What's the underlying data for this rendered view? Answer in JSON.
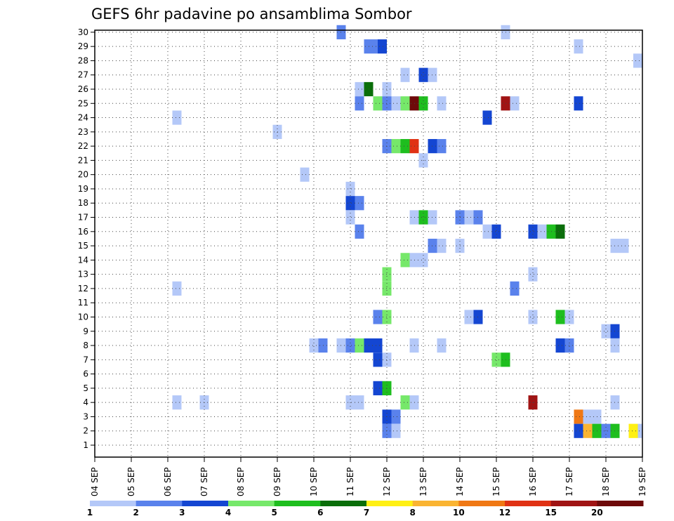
{
  "chart_data": {
    "type": "heatmap",
    "title": "GEFS 6hr padavine po ansamblima Sombor",
    "xlabel": "",
    "ylabel": "",
    "x_tick_labels": [
      "04 SEP",
      "05 SEP",
      "06 SEP",
      "07 SEP",
      "08 SEP",
      "09 SEP",
      "10 SEP",
      "11 SEP",
      "12 SEP",
      "13 SEP",
      "14 SEP",
      "15 SEP",
      "16 SEP",
      "17 SEP",
      "18 SEP",
      "19 SEP"
    ],
    "y_tick_labels": [
      "1",
      "2",
      "3",
      "4",
      "5",
      "6",
      "7",
      "8",
      "9",
      "10",
      "11",
      "12",
      "13",
      "14",
      "15",
      "16",
      "17",
      "18",
      "19",
      "20",
      "21",
      "22",
      "23",
      "24",
      "25",
      "26",
      "27",
      "28",
      "29",
      "30"
    ],
    "x_range_steps": [
      0,
      60
    ],
    "y_range_members": [
      1,
      30
    ],
    "grid": true,
    "colorbar": {
      "labels": [
        "1",
        "2",
        "3",
        "4",
        "5",
        "6",
        "7",
        "8",
        "10",
        "12",
        "15",
        "20"
      ],
      "colors": [
        "#b4c8f8",
        "#5a82ec",
        "#1446d2",
        "#76e86a",
        "#1ebe1e",
        "#0a6e0a",
        "#fff014",
        "#fab432",
        "#f07814",
        "#e03214",
        "#a01414",
        "#6e0a0a"
      ]
    },
    "cell_encoding": "cells: [member, step_start, step_end, color_class]; step 0 = 04 SEP 00h, 6h per step; class 0=1-2, 1=2-3, 2=3-4, 3=4-5, 4=5-6, 5=6-7, 6=7-8, 7=8-10, 8=10-12, 9=12-15, 10=15-20, 11=>20",
    "cells": [
      [
        30,
        26.5,
        27.5,
        1
      ],
      [
        30,
        44.5,
        45.5,
        0
      ],
      [
        29,
        29.5,
        31,
        1
      ],
      [
        29,
        31,
        32,
        2
      ],
      [
        29,
        52.5,
        53.5,
        0
      ],
      [
        28,
        59,
        60,
        0
      ],
      [
        27,
        33.5,
        34.5,
        0
      ],
      [
        27,
        35.5,
        36.5,
        2
      ],
      [
        27,
        36.5,
        37.5,
        0
      ],
      [
        26,
        28.5,
        29.5,
        0
      ],
      [
        26,
        29.5,
        30.5,
        5
      ],
      [
        26,
        31.5,
        32.5,
        0
      ],
      [
        25,
        28.5,
        29.5,
        1
      ],
      [
        25,
        30.5,
        31.5,
        3
      ],
      [
        25,
        31.5,
        32.5,
        1
      ],
      [
        25,
        32.5,
        33.5,
        0
      ],
      [
        25,
        33.5,
        34.5,
        3
      ],
      [
        25,
        34.5,
        35.5,
        11
      ],
      [
        25,
        35.5,
        36.5,
        4
      ],
      [
        25,
        37.5,
        38.5,
        0
      ],
      [
        25,
        44.5,
        45.5,
        10
      ],
      [
        25,
        45.5,
        46.5,
        0
      ],
      [
        25,
        52.5,
        53.5,
        2
      ],
      [
        24,
        8.5,
        9.5,
        0
      ],
      [
        24,
        42.5,
        43.5,
        2
      ],
      [
        23,
        19.5,
        20.5,
        0
      ],
      [
        22,
        31.5,
        32.5,
        1
      ],
      [
        22,
        32.5,
        33.5,
        3
      ],
      [
        22,
        33.5,
        34.5,
        4
      ],
      [
        22,
        34.5,
        35.5,
        9
      ],
      [
        22,
        36.5,
        37.5,
        2
      ],
      [
        22,
        37.5,
        38.5,
        1
      ],
      [
        21,
        35.5,
        36.5,
        0
      ],
      [
        20,
        22.5,
        23.5,
        0
      ],
      [
        19,
        27.5,
        28.5,
        0
      ],
      [
        18,
        27.5,
        28.5,
        2
      ],
      [
        18,
        28.5,
        29.5,
        1
      ],
      [
        17,
        27.5,
        28.5,
        0
      ],
      [
        17,
        34.5,
        35.5,
        0
      ],
      [
        17,
        35.5,
        36.5,
        4
      ],
      [
        17,
        36.5,
        37.5,
        0
      ],
      [
        17,
        39.5,
        40.5,
        1
      ],
      [
        17,
        40.5,
        41.5,
        0
      ],
      [
        17,
        41.5,
        42.5,
        1
      ],
      [
        16,
        28.5,
        29.5,
        1
      ],
      [
        16,
        42.5,
        43.5,
        0
      ],
      [
        16,
        43.5,
        44.5,
        2
      ],
      [
        16,
        47.5,
        48.5,
        2
      ],
      [
        16,
        48.5,
        49.5,
        0
      ],
      [
        16,
        49.5,
        50.5,
        4
      ],
      [
        16,
        50.5,
        51.5,
        5
      ],
      [
        15,
        36.5,
        37.5,
        1
      ],
      [
        15,
        37.5,
        38.5,
        0
      ],
      [
        15,
        39.5,
        40.5,
        0
      ],
      [
        15,
        56.5,
        58.5,
        0
      ],
      [
        14,
        33.5,
        34.5,
        3
      ],
      [
        14,
        34.5,
        36.5,
        0
      ],
      [
        13,
        31.5,
        32.5,
        3
      ],
      [
        13,
        47.5,
        48.5,
        0
      ],
      [
        12,
        8.5,
        9.5,
        0
      ],
      [
        12,
        31.5,
        32.5,
        3
      ],
      [
        12,
        45.5,
        46.5,
        1
      ],
      [
        10,
        30.5,
        31.5,
        1
      ],
      [
        10,
        31.5,
        32.5,
        3
      ],
      [
        10,
        40.5,
        41.5,
        0
      ],
      [
        10,
        41.5,
        42.5,
        2
      ],
      [
        10,
        47.5,
        48.5,
        0
      ],
      [
        10,
        50.5,
        51.5,
        4
      ],
      [
        10,
        51.5,
        52.5,
        0
      ],
      [
        9,
        55.5,
        56.5,
        0
      ],
      [
        9,
        56.5,
        57.5,
        2
      ],
      [
        8,
        23.5,
        24.5,
        0
      ],
      [
        8,
        24.5,
        25.5,
        1
      ],
      [
        8,
        26.5,
        27.5,
        0
      ],
      [
        8,
        27.5,
        28.5,
        1
      ],
      [
        8,
        28.5,
        29.5,
        3
      ],
      [
        8,
        29.5,
        31.5,
        2
      ],
      [
        8,
        34.5,
        35.5,
        0
      ],
      [
        8,
        37.5,
        38.5,
        0
      ],
      [
        8,
        50.5,
        51.5,
        2
      ],
      [
        8,
        51.5,
        52.5,
        1
      ],
      [
        8,
        56.5,
        57.5,
        0
      ],
      [
        7,
        30.5,
        31.5,
        2
      ],
      [
        7,
        31.5,
        32.5,
        0
      ],
      [
        7,
        43.5,
        44.5,
        3
      ],
      [
        7,
        44.5,
        45.5,
        4
      ],
      [
        5,
        30.5,
        31.5,
        2
      ],
      [
        5,
        31.5,
        32.5,
        4
      ],
      [
        4,
        8.5,
        9.5,
        0
      ],
      [
        4,
        11.5,
        12.5,
        0
      ],
      [
        4,
        27.5,
        29.5,
        0
      ],
      [
        4,
        33.5,
        34.5,
        3
      ],
      [
        4,
        34.5,
        35.5,
        0
      ],
      [
        4,
        47.5,
        48.5,
        10
      ],
      [
        4,
        56.5,
        57.5,
        0
      ],
      [
        3,
        31.5,
        32.5,
        2
      ],
      [
        3,
        32.5,
        33.5,
        1
      ],
      [
        3,
        52.5,
        53.5,
        8
      ],
      [
        3,
        53.5,
        55.5,
        0
      ],
      [
        2,
        31.5,
        32.5,
        1
      ],
      [
        2,
        32.5,
        33.5,
        0
      ],
      [
        2,
        52.5,
        53.5,
        2
      ],
      [
        2,
        53.5,
        54.5,
        7
      ],
      [
        2,
        54.5,
        55.5,
        4
      ],
      [
        2,
        55.5,
        56.5,
        1
      ],
      [
        2,
        56.5,
        57.5,
        4
      ],
      [
        2,
        58.5,
        59.5,
        6
      ],
      [
        2,
        59.5,
        60,
        0
      ]
    ]
  }
}
